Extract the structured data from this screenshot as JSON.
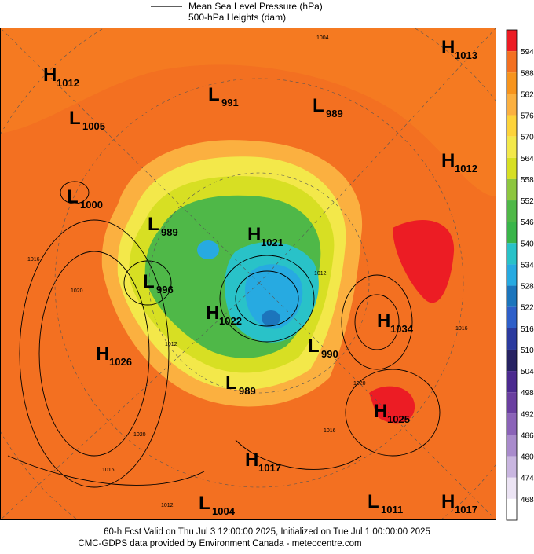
{
  "header": {
    "lines": [
      "Mean Sea Level Pressure (hPa)",
      "500-hPa Heights (dam)"
    ]
  },
  "centers": [
    {
      "letter": "H",
      "value": "1013"
    },
    {
      "letter": "H",
      "value": "1012"
    },
    {
      "letter": "L",
      "value": "991"
    },
    {
      "letter": "L",
      "value": "989"
    },
    {
      "letter": "L",
      "value": "1005"
    },
    {
      "letter": "H",
      "value": "1012"
    },
    {
      "letter": "L",
      "value": "1000"
    },
    {
      "letter": "L",
      "value": "989"
    },
    {
      "letter": "H",
      "value": "1021"
    },
    {
      "letter": "L",
      "value": "996"
    },
    {
      "letter": "H",
      "value": "1022"
    },
    {
      "letter": "H",
      "value": "1034"
    },
    {
      "letter": "L",
      "value": "990"
    },
    {
      "letter": "H",
      "value": "1026"
    },
    {
      "letter": "L",
      "value": "989"
    },
    {
      "letter": "H",
      "value": "1025"
    },
    {
      "letter": "H",
      "value": "1017"
    },
    {
      "letter": "L",
      "value": "1004"
    },
    {
      "letter": "L",
      "value": "1011"
    },
    {
      "letter": "H",
      "value": "1017"
    }
  ],
  "contour_labels": [
    "1004",
    "1016",
    "1020",
    "1020",
    "1016",
    "1012",
    "1016",
    "1020",
    "1016",
    "1012",
    "1012"
  ],
  "colorbar": {
    "labels": [
      "594",
      "588",
      "582",
      "576",
      "570",
      "564",
      "558",
      "552",
      "546",
      "540",
      "534",
      "528",
      "522",
      "516",
      "510",
      "504",
      "498",
      "492",
      "486",
      "480",
      "474",
      "468"
    ],
    "colors": [
      "#ec1c24",
      "#f37021",
      "#f7941d",
      "#fbb040",
      "#fdd33a",
      "#f3e84a",
      "#d7df23",
      "#8dc63f",
      "#4fb848",
      "#39b54a",
      "#29c2c8",
      "#27aae1",
      "#1c75bc",
      "#2e5fc9",
      "#2b3a9e",
      "#262262",
      "#4b2a8f",
      "#6a3fa0",
      "#8b63b8",
      "#a98bcc",
      "#c9b6e0",
      "#ece4f4",
      "#ffffff"
    ]
  },
  "footer": {
    "lines": [
      "60-h Fcst Valid on Thu Jul  3 12:00:00 2025, Initialized on Tue Jul  1 00:00:00 2025",
      "CMC-GDPS data provided by Environment Canada - meteocentre.com"
    ]
  }
}
